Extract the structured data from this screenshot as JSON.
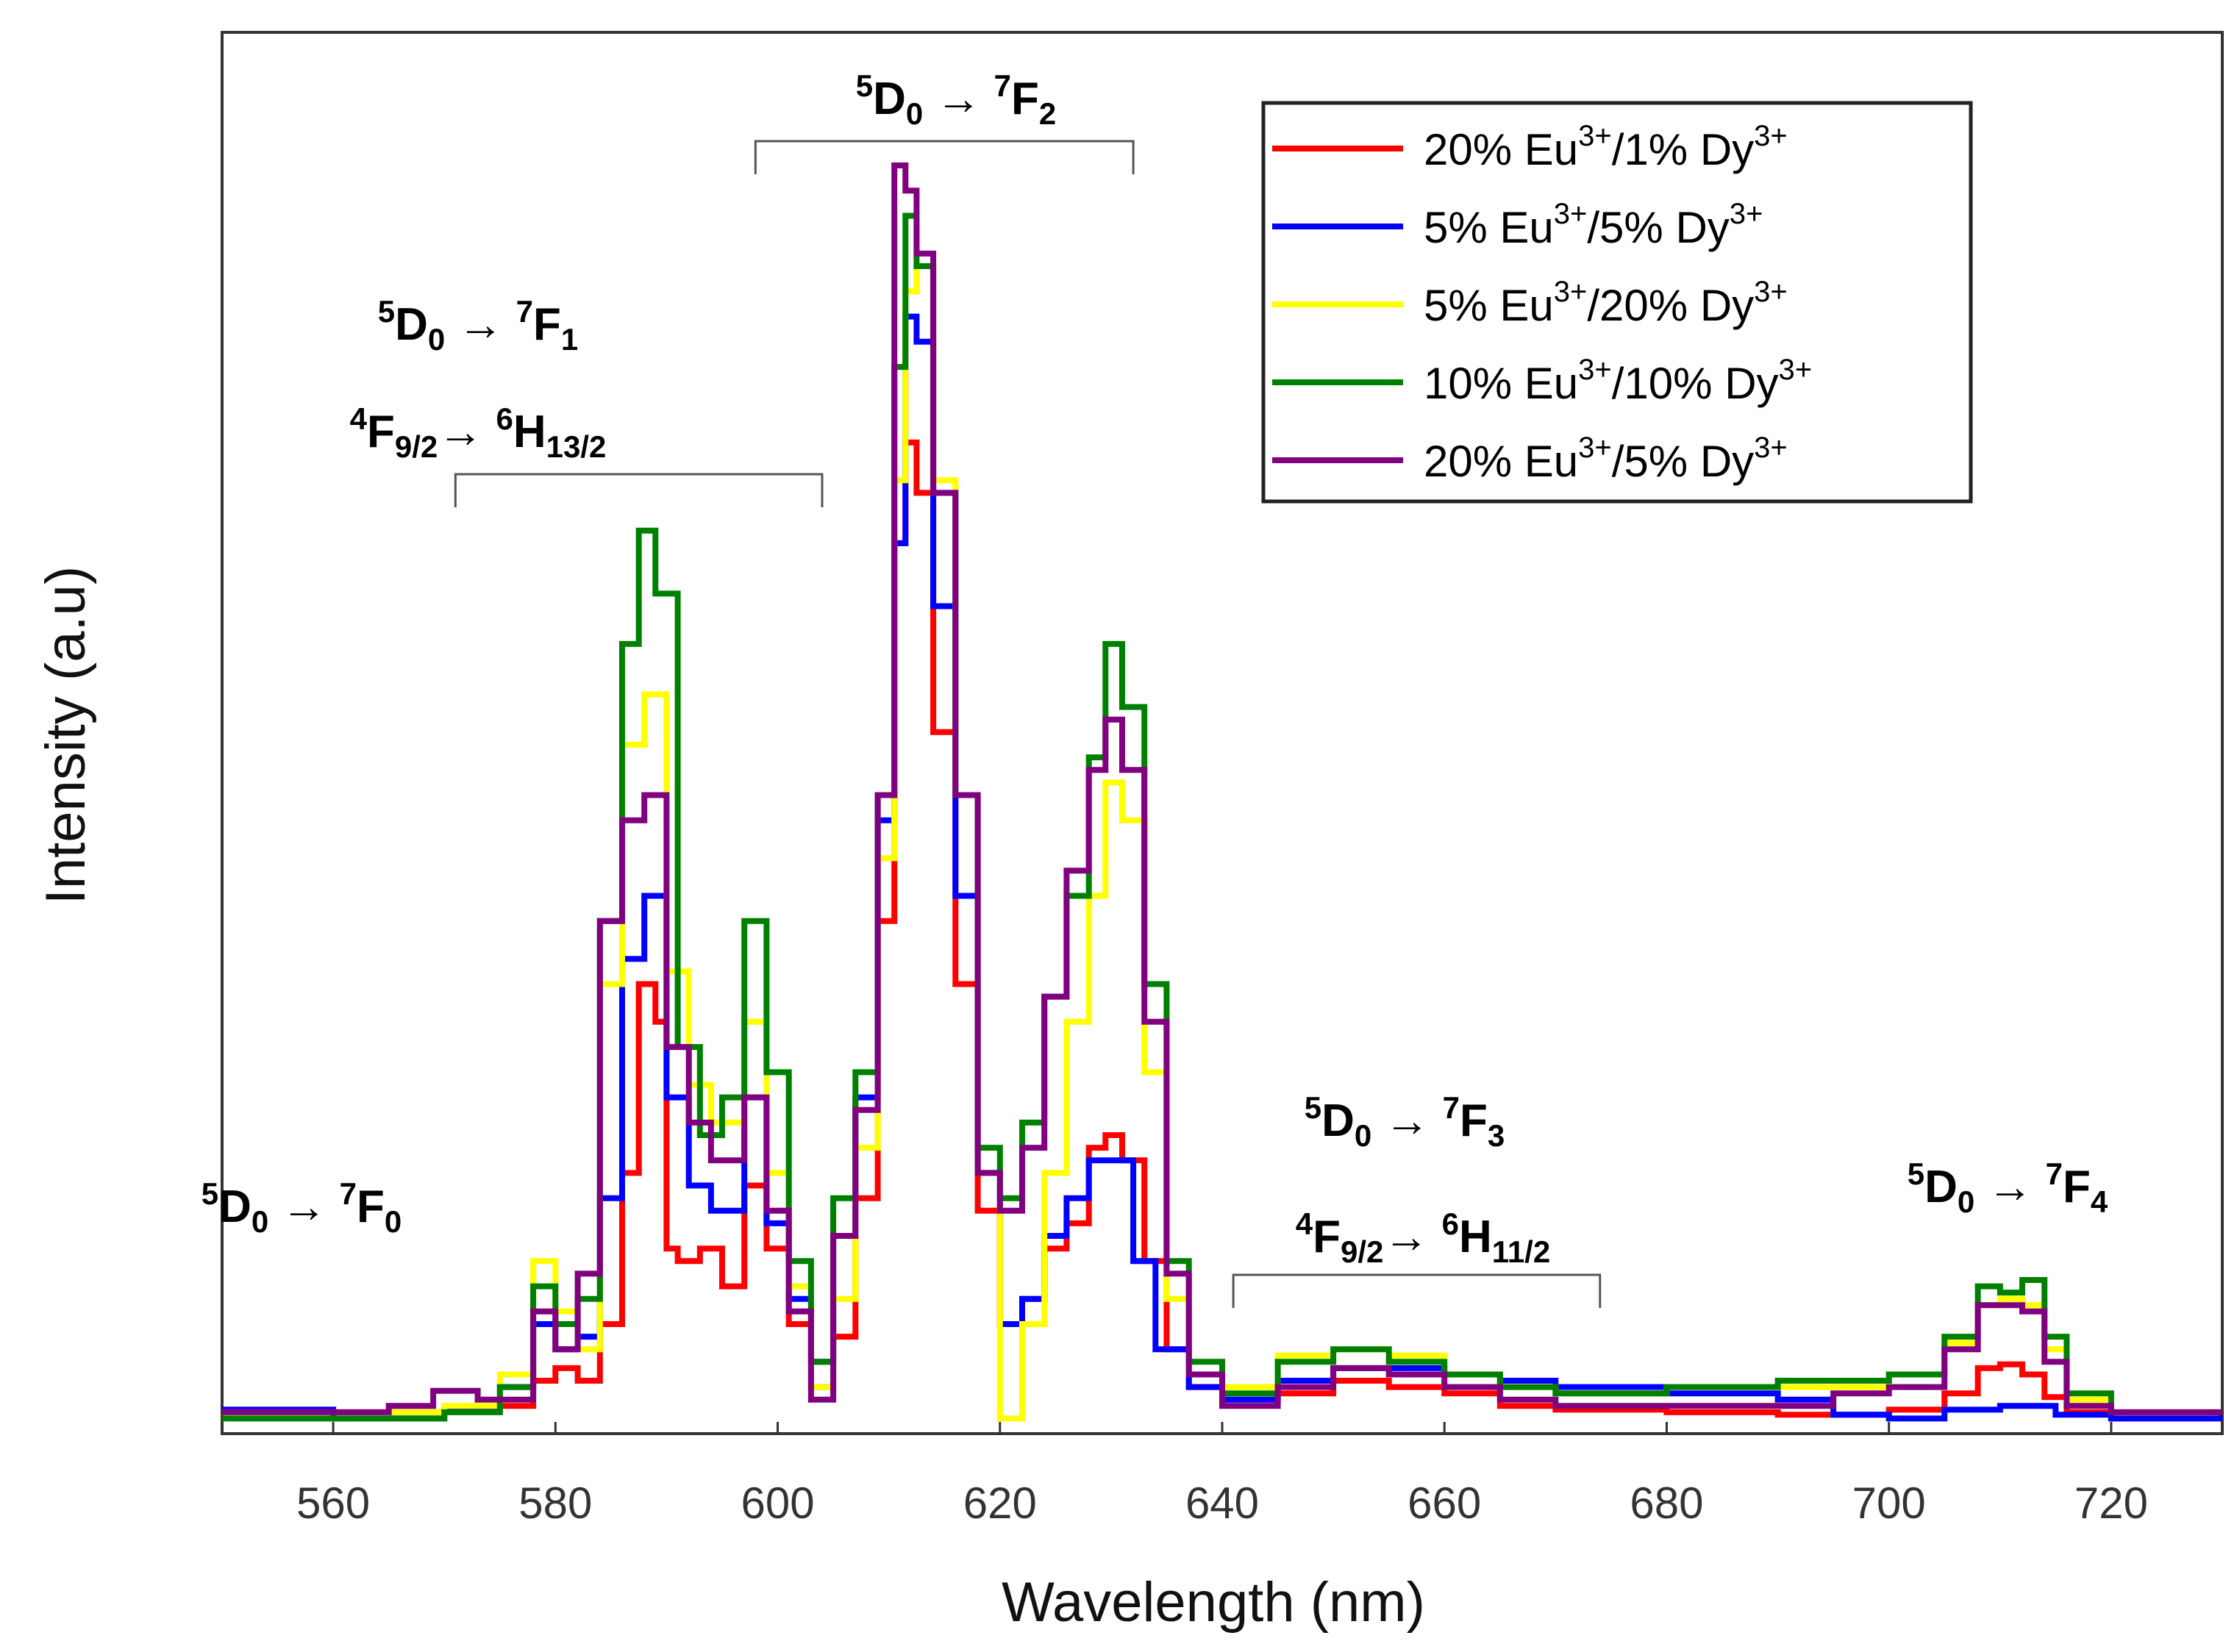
{
  "chart_data": {
    "type": "line",
    "title": "",
    "xlabel": "Wavelength (nm)",
    "ylabel": "Intensity (a.u)",
    "xlim": [
      550,
      730
    ],
    "ylim": [
      0,
      1.0
    ],
    "xticks": [
      560,
      580,
      600,
      620,
      640,
      660,
      680,
      700,
      720
    ],
    "yticks_shown": false,
    "legend_position": "top-right",
    "annotations": [
      {
        "id": "f0",
        "lines": [
          {
            "pre_sup": "5",
            "main": "D",
            "sub": "0",
            "arrow": " → ",
            "pre_sup2": "7",
            "main2": "F",
            "sub2": "0"
          }
        ],
        "bracket": null
      },
      {
        "id": "f1",
        "lines": [
          {
            "pre_sup": "5",
            "main": "D",
            "sub": "0",
            "arrow": " → ",
            "pre_sup2": "7",
            "main2": "F",
            "sub2": "1"
          },
          {
            "pre_sup": "4",
            "main": "F",
            "sub": "9/2",
            "arrow": "→ ",
            "pre_sup2": "6",
            "main2": "H",
            "sub2": "13/2"
          }
        ],
        "bracket": [
          571,
          604
        ]
      },
      {
        "id": "f2",
        "lines": [
          {
            "pre_sup": "5",
            "main": "D",
            "sub": "0",
            "arrow": " → ",
            "pre_sup2": "7",
            "main2": "F",
            "sub2": "2"
          }
        ],
        "bracket": [
          598,
          632
        ]
      },
      {
        "id": "f3",
        "lines": [
          {
            "pre_sup": "5",
            "main": "D",
            "sub": "0",
            "arrow": " → ",
            "pre_sup2": "7",
            "main2": "F",
            "sub2": "3"
          },
          {
            "pre_sup": "4",
            "main": "F",
            "sub": "9/2",
            "arrow": "→ ",
            "pre_sup2": "6",
            "main2": "H",
            "sub2": "11/2"
          }
        ],
        "bracket": [
          641,
          674
        ]
      },
      {
        "id": "f4",
        "lines": [
          {
            "pre_sup": "5",
            "main": "D",
            "sub": "0",
            "arrow": " → ",
            "pre_sup2": "7",
            "main2": "F",
            "sub2": "4"
          }
        ],
        "bracket": null
      }
    ],
    "series": [
      {
        "name": "20% Eu3+/1% Dy3+",
        "legend": {
          "p1": "20% Eu",
          "s1": "3+",
          "p2": "/1% Dy",
          "s2": "3+"
        },
        "color": "#ff0000",
        "points": [
          [
            550,
            0.012
          ],
          [
            560,
            0.01
          ],
          [
            570,
            0.012
          ],
          [
            575,
            0.015
          ],
          [
            578,
            0.035
          ],
          [
            580,
            0.045
          ],
          [
            582,
            0.035
          ],
          [
            584,
            0.08
          ],
          [
            586,
            0.2
          ],
          [
            587.5,
            0.35
          ],
          [
            589,
            0.32
          ],
          [
            590,
            0.14
          ],
          [
            591,
            0.13
          ],
          [
            593,
            0.14
          ],
          [
            595,
            0.11
          ],
          [
            597,
            0.19
          ],
          [
            599,
            0.14
          ],
          [
            601,
            0.08
          ],
          [
            603,
            0.03
          ],
          [
            605,
            0.07
          ],
          [
            607,
            0.18
          ],
          [
            609,
            0.4
          ],
          [
            610.5,
            0.7
          ],
          [
            611.5,
            0.78
          ],
          [
            612.5,
            0.74
          ],
          [
            614,
            0.55
          ],
          [
            616,
            0.35
          ],
          [
            618,
            0.17
          ],
          [
            620,
            0.08
          ],
          [
            622,
            0.1
          ],
          [
            624,
            0.14
          ],
          [
            626,
            0.16
          ],
          [
            628,
            0.22
          ],
          [
            629.5,
            0.23
          ],
          [
            631,
            0.21
          ],
          [
            633,
            0.13
          ],
          [
            635,
            0.06
          ],
          [
            637,
            0.03
          ],
          [
            640,
            0.02
          ],
          [
            645,
            0.025
          ],
          [
            650,
            0.035
          ],
          [
            655,
            0.03
          ],
          [
            660,
            0.025
          ],
          [
            665,
            0.015
          ],
          [
            670,
            0.012
          ],
          [
            680,
            0.01
          ],
          [
            690,
            0.008
          ],
          [
            700,
            0.012
          ],
          [
            705,
            0.025
          ],
          [
            708,
            0.045
          ],
          [
            710,
            0.048
          ],
          [
            712,
            0.04
          ],
          [
            714,
            0.022
          ],
          [
            716,
            0.01
          ],
          [
            720,
            0.005
          ],
          [
            730,
            0.008
          ]
        ]
      },
      {
        "name": "5% Eu3+/5% Dy3+",
        "legend": {
          "p1": "5% Eu",
          "s1": "3+",
          "p2": "/5% Dy",
          "s2": "3+"
        },
        "color": "#0000ff",
        "points": [
          [
            550,
            0.012
          ],
          [
            560,
            0.005
          ],
          [
            570,
            0.012
          ],
          [
            575,
            0.03
          ],
          [
            578,
            0.08
          ],
          [
            580,
            0.06
          ],
          [
            582,
            0.07
          ],
          [
            584,
            0.18
          ],
          [
            586,
            0.37
          ],
          [
            588,
            0.42
          ],
          [
            590,
            0.26
          ],
          [
            592,
            0.19
          ],
          [
            594,
            0.17
          ],
          [
            597,
            0.26
          ],
          [
            599,
            0.16
          ],
          [
            601,
            0.1
          ],
          [
            603,
            0.05
          ],
          [
            605,
            0.15
          ],
          [
            607,
            0.26
          ],
          [
            609,
            0.48
          ],
          [
            610.5,
            0.7
          ],
          [
            611.5,
            0.88
          ],
          [
            612.5,
            0.86
          ],
          [
            614,
            0.65
          ],
          [
            616,
            0.42
          ],
          [
            618,
            0.2
          ],
          [
            620,
            0.08
          ],
          [
            622,
            0.1
          ],
          [
            624,
            0.15
          ],
          [
            626,
            0.18
          ],
          [
            628,
            0.21
          ],
          [
            630,
            0.21
          ],
          [
            632,
            0.13
          ],
          [
            634,
            0.06
          ],
          [
            637,
            0.03
          ],
          [
            640,
            0.02
          ],
          [
            645,
            0.035
          ],
          [
            650,
            0.045
          ],
          [
            655,
            0.045
          ],
          [
            660,
            0.04
          ],
          [
            665,
            0.035
          ],
          [
            670,
            0.03
          ],
          [
            675,
            0.03
          ],
          [
            680,
            0.025
          ],
          [
            690,
            0.02
          ],
          [
            695,
            0.008
          ],
          [
            700,
            0.005
          ],
          [
            705,
            0.012
          ],
          [
            710,
            0.015
          ],
          [
            715,
            0.008
          ],
          [
            720,
            0.005
          ],
          [
            730,
            0.01
          ]
        ]
      },
      {
        "name": "5% Eu3+/20% Dy3+",
        "legend": {
          "p1": "5% Eu",
          "s1": "3+",
          "p2": "/20% Dy",
          "s2": "3+"
        },
        "color": "#ffff00",
        "points": [
          [
            550,
            0.01
          ],
          [
            560,
            0.01
          ],
          [
            570,
            0.015
          ],
          [
            575,
            0.04
          ],
          [
            578,
            0.13
          ],
          [
            580,
            0.09
          ],
          [
            582,
            0.06
          ],
          [
            584,
            0.35
          ],
          [
            586,
            0.54
          ],
          [
            588,
            0.58
          ],
          [
            590,
            0.36
          ],
          [
            592,
            0.27
          ],
          [
            594,
            0.24
          ],
          [
            597,
            0.32
          ],
          [
            599,
            0.2
          ],
          [
            601,
            0.11
          ],
          [
            603,
            0.03
          ],
          [
            605,
            0.1
          ],
          [
            607,
            0.22
          ],
          [
            609,
            0.45
          ],
          [
            610.5,
            0.75
          ],
          [
            611.5,
            0.9
          ],
          [
            612.5,
            0.92
          ],
          [
            614,
            0.75
          ],
          [
            616,
            0.5
          ],
          [
            618,
            0.2
          ],
          [
            620,
            0.005
          ],
          [
            622,
            0.08
          ],
          [
            624,
            0.2
          ],
          [
            626,
            0.32
          ],
          [
            628,
            0.42
          ],
          [
            629.5,
            0.51
          ],
          [
            631,
            0.48
          ],
          [
            633,
            0.28
          ],
          [
            635,
            0.1
          ],
          [
            637,
            0.04
          ],
          [
            640,
            0.03
          ],
          [
            645,
            0.055
          ],
          [
            650,
            0.06
          ],
          [
            655,
            0.055
          ],
          [
            660,
            0.04
          ],
          [
            665,
            0.03
          ],
          [
            670,
            0.025
          ],
          [
            680,
            0.03
          ],
          [
            690,
            0.03
          ],
          [
            700,
            0.04
          ],
          [
            705,
            0.065
          ],
          [
            708,
            0.095
          ],
          [
            710,
            0.1
          ],
          [
            712,
            0.095
          ],
          [
            714,
            0.06
          ],
          [
            716,
            0.02
          ],
          [
            720,
            0.01
          ],
          [
            730,
            0.012
          ]
        ]
      },
      {
        "name": "10% Eu3+/10% Dy3+",
        "legend": {
          "p1": "10% Eu",
          "s1": "3+",
          "p2": "/10% Dy",
          "s2": "3+"
        },
        "color": "#008000",
        "points": [
          [
            550,
            0.005
          ],
          [
            560,
            0.005
          ],
          [
            570,
            0.01
          ],
          [
            575,
            0.03
          ],
          [
            578,
            0.11
          ],
          [
            580,
            0.08
          ],
          [
            582,
            0.1
          ],
          [
            584,
            0.4
          ],
          [
            586,
            0.62
          ],
          [
            587.5,
            0.71
          ],
          [
            589,
            0.66
          ],
          [
            591,
            0.3
          ],
          [
            593,
            0.23
          ],
          [
            595,
            0.26
          ],
          [
            597,
            0.4
          ],
          [
            599,
            0.28
          ],
          [
            601,
            0.13
          ],
          [
            603,
            0.05
          ],
          [
            605,
            0.18
          ],
          [
            607,
            0.28
          ],
          [
            609,
            0.5
          ],
          [
            610.5,
            0.84
          ],
          [
            611.5,
            0.96
          ],
          [
            612.5,
            0.92
          ],
          [
            614,
            0.74
          ],
          [
            616,
            0.5
          ],
          [
            618,
            0.22
          ],
          [
            620,
            0.18
          ],
          [
            622,
            0.24
          ],
          [
            624,
            0.34
          ],
          [
            626,
            0.42
          ],
          [
            628,
            0.53
          ],
          [
            629.5,
            0.62
          ],
          [
            631,
            0.57
          ],
          [
            633,
            0.35
          ],
          [
            635,
            0.13
          ],
          [
            637,
            0.05
          ],
          [
            640,
            0.025
          ],
          [
            645,
            0.05
          ],
          [
            650,
            0.06
          ],
          [
            655,
            0.05
          ],
          [
            660,
            0.04
          ],
          [
            665,
            0.03
          ],
          [
            670,
            0.025
          ],
          [
            680,
            0.03
          ],
          [
            690,
            0.035
          ],
          [
            700,
            0.04
          ],
          [
            705,
            0.07
          ],
          [
            708,
            0.11
          ],
          [
            710,
            0.105
          ],
          [
            712,
            0.115
          ],
          [
            714,
            0.07
          ],
          [
            716,
            0.025
          ],
          [
            720,
            0.01
          ],
          [
            730,
            0.01
          ]
        ]
      },
      {
        "name": "20% Eu3+/5% Dy3+",
        "legend": {
          "p1": "20% Eu",
          "s1": "3+",
          "p2": "/5% Dy",
          "s2": "3+"
        },
        "color": "#800080",
        "points": [
          [
            550,
            0.01
          ],
          [
            560,
            0.01
          ],
          [
            565,
            0.015
          ],
          [
            569,
            0.027
          ],
          [
            573,
            0.02
          ],
          [
            578,
            0.09
          ],
          [
            580,
            0.06
          ],
          [
            582,
            0.12
          ],
          [
            584,
            0.4
          ],
          [
            586,
            0.48
          ],
          [
            588,
            0.5
          ],
          [
            590,
            0.3
          ],
          [
            592,
            0.24
          ],
          [
            594,
            0.21
          ],
          [
            597,
            0.26
          ],
          [
            599,
            0.17
          ],
          [
            601,
            0.09
          ],
          [
            603,
            0.02
          ],
          [
            605,
            0.15
          ],
          [
            607,
            0.25
          ],
          [
            609,
            0.5
          ],
          [
            610.5,
            1.0
          ],
          [
            611.5,
            0.98
          ],
          [
            612.5,
            0.93
          ],
          [
            614,
            0.74
          ],
          [
            616,
            0.5
          ],
          [
            618,
            0.2
          ],
          [
            620,
            0.17
          ],
          [
            622,
            0.22
          ],
          [
            624,
            0.34
          ],
          [
            626,
            0.44
          ],
          [
            628,
            0.52
          ],
          [
            629.5,
            0.56
          ],
          [
            631,
            0.52
          ],
          [
            633,
            0.32
          ],
          [
            635,
            0.12
          ],
          [
            637,
            0.04
          ],
          [
            640,
            0.015
          ],
          [
            645,
            0.03
          ],
          [
            650,
            0.045
          ],
          [
            655,
            0.04
          ],
          [
            660,
            0.03
          ],
          [
            665,
            0.02
          ],
          [
            670,
            0.015
          ],
          [
            680,
            0.015
          ],
          [
            690,
            0.015
          ],
          [
            695,
            0.025
          ],
          [
            700,
            0.03
          ],
          [
            705,
            0.06
          ],
          [
            708,
            0.095
          ],
          [
            710,
            0.095
          ],
          [
            712,
            0.09
          ],
          [
            714,
            0.05
          ],
          [
            716,
            0.015
          ],
          [
            720,
            0.01
          ],
          [
            730,
            0.01
          ]
        ]
      }
    ]
  }
}
